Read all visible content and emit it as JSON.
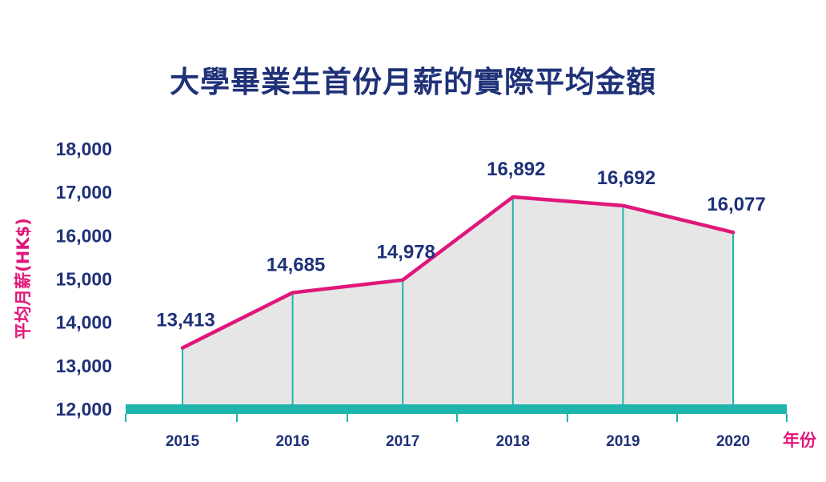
{
  "title": "大學畢業生首份月薪的實際平均金額",
  "chart_data": {
    "type": "area",
    "title": "大學畢業生首份月薪的實際平均金額",
    "xlabel": "年份",
    "ylabel": "平均月薪(HK$)",
    "categories": [
      "2015",
      "2016",
      "2017",
      "2018",
      "2019",
      "2020"
    ],
    "values": [
      13413,
      14685,
      14978,
      16892,
      16692,
      16077
    ],
    "data_labels": [
      "13,413",
      "14,685",
      "14,978",
      "16,892",
      "16,692",
      "16,077"
    ],
    "y_ticks": [
      "12,000",
      "13,000",
      "14,000",
      "15,000",
      "16,000",
      "17,000",
      "18,000"
    ],
    "ylim": [
      12000,
      18000
    ],
    "grid": false,
    "colors": {
      "line": "#e0177a",
      "fill": "#e6e6e6",
      "baseline": "#1fb5ac",
      "text": "#1f3178",
      "axis_label": "#e0177a"
    }
  }
}
